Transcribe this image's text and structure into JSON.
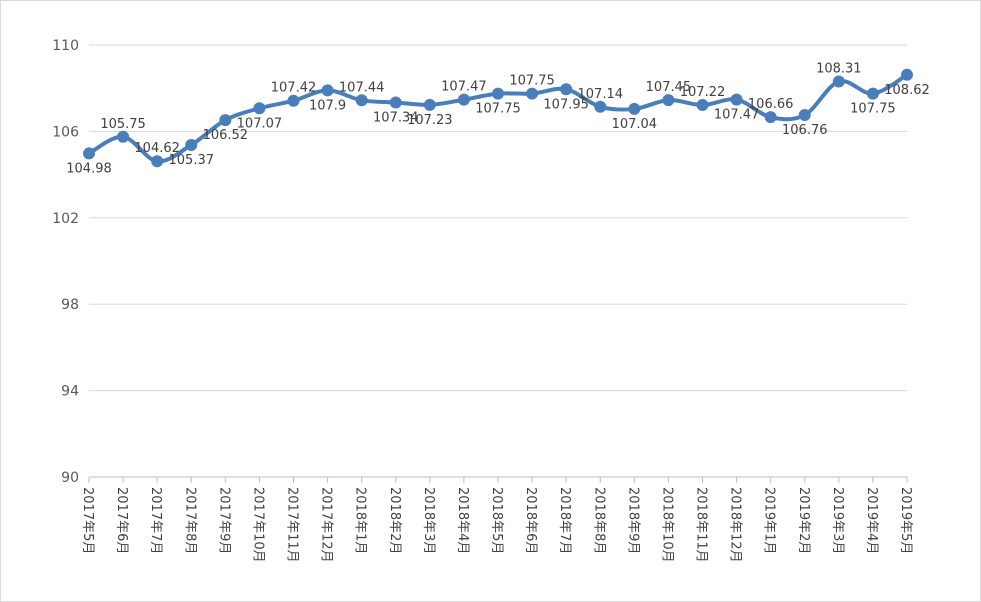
{
  "chart_data": {
    "type": "line",
    "title": "",
    "xlabel": "",
    "ylabel": "",
    "ylim": [
      90,
      110
    ],
    "yticks": [
      90,
      94,
      98,
      102,
      106,
      110
    ],
    "grid": true,
    "legend": "none",
    "categories": [
      "2017年5月",
      "2017年6月",
      "2017年7月",
      "2017年8月",
      "2017年9月",
      "2017年10月",
      "2017年11月",
      "2017年12月",
      "2018年1月",
      "2018年2月",
      "2018年3月",
      "2018年4月",
      "2018年5月",
      "2018年6月",
      "2018年7月",
      "2018年8月",
      "2018年9月",
      "2018年10月",
      "2018年11月",
      "2018年12月",
      "2019年1月",
      "2019年2月",
      "2019年3月",
      "2019年4月",
      "2019年5月"
    ],
    "series": [
      {
        "values": [
          104.98,
          105.75,
          104.62,
          105.37,
          106.52,
          107.07,
          107.42,
          107.9,
          107.44,
          107.34,
          107.23,
          107.47,
          107.75,
          107.75,
          107.95,
          107.14,
          107.04,
          107.45,
          107.22,
          107.47,
          106.66,
          106.76,
          108.31,
          107.75,
          108.62
        ],
        "labels": [
          "104.98",
          "105.75",
          "104.62",
          "105.37",
          "106.52",
          "107.07",
          "107.42",
          "107.9",
          "107.44",
          "107.34",
          "107.23",
          "107.47",
          "107.75",
          "107.75",
          "107.95",
          "107.14",
          "107.04",
          "107.45",
          "107.22",
          "107.47",
          "106.66",
          "106.76",
          "108.31",
          "107.75",
          "108.62"
        ],
        "color": "#4a7ebb"
      }
    ],
    "colors": {
      "line": "#4a7ebb",
      "grid": "#d9d9d9",
      "axis": "#bfbfbf",
      "text": "#404040"
    }
  }
}
